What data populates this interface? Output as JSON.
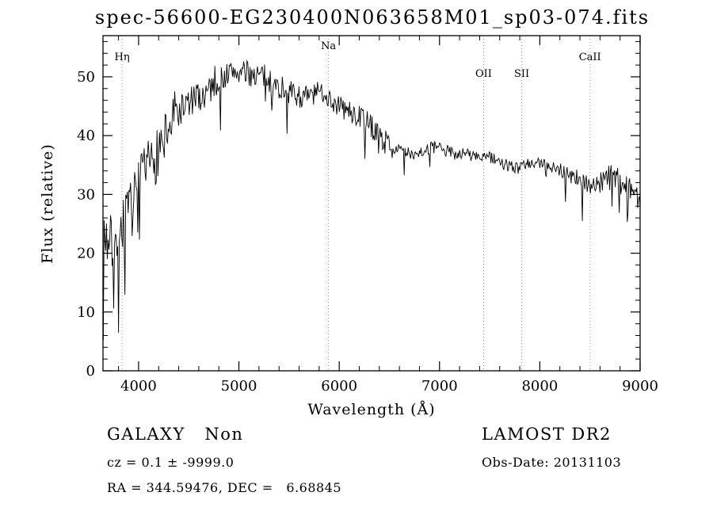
{
  "figure": {
    "title": "spec-56600-EG230400N063658M01_sp03-074.fits",
    "xlabel": "Wavelength (Å)",
    "ylabel": "Flux (relative)",
    "footer": {
      "class_label": "GALAXY   Non",
      "survey": "LAMOST DR2",
      "cz": "cz = 0.1 ± -9999.0",
      "obs_date": "Obs-Date: 20131103",
      "ra_dec": "RA = 344.59476, DEC =   6.68845"
    }
  },
  "chart_data": {
    "type": "line",
    "title": "spec-56600-EG230400N063658M01_sp03-074.fits",
    "xlabel": "Wavelength (Å)",
    "ylabel": "Flux (relative)",
    "xlim": [
      3645,
      9000
    ],
    "ylim": [
      0,
      57
    ],
    "xticks": [
      4000,
      5000,
      6000,
      7000,
      8000,
      9000
    ],
    "yticks": [
      0,
      10,
      20,
      30,
      40,
      50
    ],
    "x_minor_step": 200,
    "y_minor_step": 2,
    "grid": false,
    "legend": "none",
    "line_color": "#000000",
    "marker_line_color": "#999999",
    "spectral_lines": [
      {
        "label": "Hη",
        "wavelength": 3835,
        "label_y": 76
      },
      {
        "label": "Na",
        "wavelength": 5893,
        "label_y": 62
      },
      {
        "label": "OII",
        "wavelength": 7440,
        "label_y": 97
      },
      {
        "label": "SII",
        "wavelength": 7820,
        "label_y": 97
      },
      {
        "label": "CaII",
        "wavelength": 8500,
        "label_y": 76
      }
    ],
    "continuum": [
      [
        3645,
        24
      ],
      [
        3700,
        22
      ],
      [
        3760,
        21
      ],
      [
        3820,
        24
      ],
      [
        3880,
        26
      ],
      [
        3940,
        28
      ],
      [
        4000,
        31
      ],
      [
        4060,
        33
      ],
      [
        4120,
        35
      ],
      [
        4180,
        37
      ],
      [
        4250,
        40
      ],
      [
        4350,
        43
      ],
      [
        4450,
        45
      ],
      [
        4550,
        46
      ],
      [
        4650,
        47
      ],
      [
        4750,
        49
      ],
      [
        4850,
        50
      ],
      [
        4950,
        51
      ],
      [
        5050,
        50.5
      ],
      [
        5150,
        50.5
      ],
      [
        5250,
        50
      ],
      [
        5350,
        48.5
      ],
      [
        5450,
        48
      ],
      [
        5550,
        47
      ],
      [
        5650,
        46.5
      ],
      [
        5750,
        47
      ],
      [
        5850,
        47.5
      ],
      [
        5950,
        45.5
      ],
      [
        6050,
        44.5
      ],
      [
        6150,
        43.5
      ],
      [
        6250,
        43
      ],
      [
        6350,
        41
      ],
      [
        6450,
        39
      ],
      [
        6550,
        38
      ],
      [
        6650,
        37
      ],
      [
        6750,
        37
      ],
      [
        6850,
        37.5
      ],
      [
        6950,
        38
      ],
      [
        7050,
        37.5
      ],
      [
        7150,
        37
      ],
      [
        7250,
        37
      ],
      [
        7350,
        36.5
      ],
      [
        7450,
        36.5
      ],
      [
        7550,
        36
      ],
      [
        7650,
        35
      ],
      [
        7750,
        34.5
      ],
      [
        7850,
        35
      ],
      [
        7950,
        35
      ],
      [
        8050,
        35.5
      ],
      [
        8150,
        34.5
      ],
      [
        8250,
        34
      ],
      [
        8350,
        33
      ],
      [
        8450,
        32
      ],
      [
        8550,
        31.5
      ],
      [
        8650,
        32.5
      ],
      [
        8750,
        33
      ],
      [
        8850,
        31.5
      ],
      [
        8950,
        30.5
      ],
      [
        9000,
        29
      ]
    ],
    "noise_profile": [
      {
        "range": [
          3645,
          4400
        ],
        "amplitude": 5.0,
        "spike_prob": 0.1,
        "spike_depth": 14
      },
      {
        "range": [
          4400,
          4800
        ],
        "amplitude": 2.8,
        "spike_prob": 0.05,
        "spike_depth": 9
      },
      {
        "range": [
          4800,
          5500
        ],
        "amplitude": 2.2,
        "spike_prob": 0.04,
        "spike_depth": 7
      },
      {
        "range": [
          5500,
          6300
        ],
        "amplitude": 2.0,
        "spike_prob": 0.03,
        "spike_depth": 6
      },
      {
        "range": [
          6300,
          6500
        ],
        "amplitude": 2.0,
        "spike_prob": 0.06,
        "spike_depth": 8
      },
      {
        "range": [
          6500,
          8200
        ],
        "amplitude": 1.1,
        "spike_prob": 0.02,
        "spike_depth": 4
      },
      {
        "range": [
          8200,
          8600
        ],
        "amplitude": 1.6,
        "spike_prob": 0.05,
        "spike_depth": 6
      },
      {
        "range": [
          8600,
          9001
        ],
        "amplitude": 2.2,
        "spike_prob": 0.08,
        "spike_depth": 7
      }
    ],
    "noise_seed": 7,
    "sample_step": 8
  }
}
